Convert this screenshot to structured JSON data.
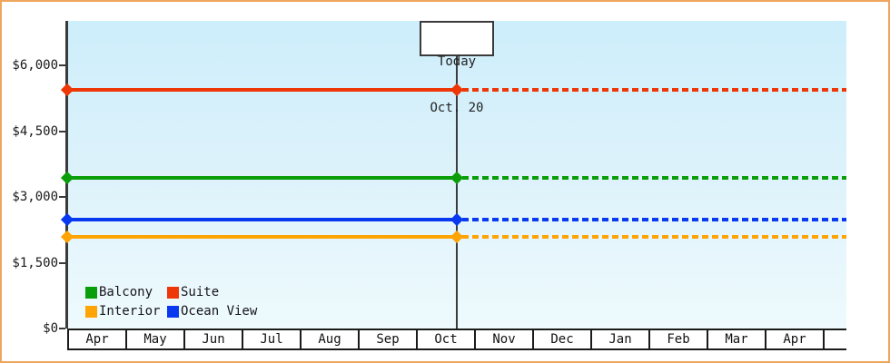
{
  "window": {
    "frame_border_color": "#f0a55f",
    "background_color": "#ffffff"
  },
  "today_box": {
    "line1": "Today",
    "line2": "Oct. 20"
  },
  "chart_data": {
    "type": "line",
    "title": "",
    "x_axis": {
      "categories": [
        "Apr",
        "May",
        "Jun",
        "Jul",
        "Aug",
        "Sep",
        "Oct",
        "Nov",
        "Dec",
        "Jan",
        "Feb",
        "Mar",
        "Apr"
      ]
    },
    "y_axis": {
      "ticks": [
        {
          "label": "$6,000",
          "value": 6000
        },
        {
          "label": "$4,500",
          "value": 4500
        },
        {
          "label": "$3,000",
          "value": 3000
        },
        {
          "label": "$1,500",
          "value": 1500
        },
        {
          "label": "$0",
          "value": 0
        }
      ],
      "range": [
        0,
        7000
      ]
    },
    "today": {
      "label": "Today",
      "date": "Oct. 20",
      "month_index": 6,
      "month_fraction": 0.7
    },
    "series": [
      {
        "name": "Suite",
        "color": "#ee3607",
        "value": 5440,
        "before_today": "solid",
        "after_today": "dashed"
      },
      {
        "name": "Balcony",
        "color": "#0a9e0a",
        "value": 3440,
        "before_today": "solid",
        "after_today": "dashed"
      },
      {
        "name": "Ocean View",
        "color": "#0838f0",
        "value": 2480,
        "before_today": "solid",
        "after_today": "dashed"
      },
      {
        "name": "Interior",
        "color": "#ffa405",
        "value": 2090,
        "before_today": "solid",
        "after_today": "dashed"
      }
    ],
    "legend": {
      "position": "bottom-left",
      "entries": [
        {
          "label": "Balcony",
          "color": "#0a9e0a"
        },
        {
          "label": "Suite",
          "color": "#ee3607"
        },
        {
          "label": "Interior",
          "color": "#ffa405"
        },
        {
          "label": "Ocean View",
          "color": "#0838f0"
        }
      ]
    }
  }
}
